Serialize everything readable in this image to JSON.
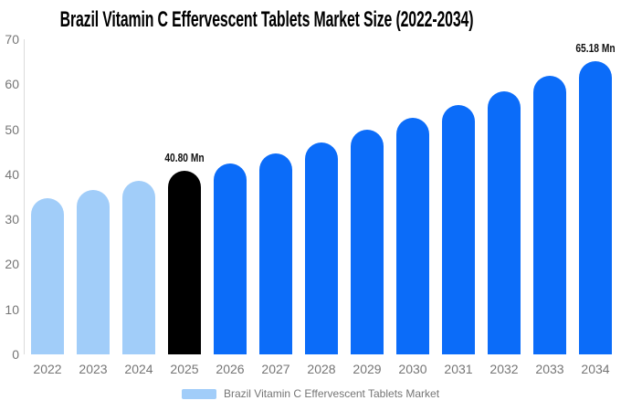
{
  "chart_data": {
    "type": "bar",
    "title": "Brazil Vitamin C Effervescent Tablets Market Size (2022-2034)",
    "xlabel": "",
    "ylabel": "",
    "unit": "Mn",
    "categories": [
      "2022",
      "2023",
      "2024",
      "2025",
      "2026",
      "2027",
      "2028",
      "2029",
      "2030",
      "2031",
      "2032",
      "2033",
      "2034"
    ],
    "values": [
      34.6,
      36.5,
      38.5,
      40.8,
      42.4,
      44.7,
      47.0,
      49.9,
      52.5,
      55.4,
      58.4,
      61.8,
      65.18
    ],
    "bar_colors": [
      "#a1cdf9",
      "#a1cdf9",
      "#a1cdf9",
      "#000000",
      "#0b6cf9",
      "#0b6cf9",
      "#0b6cf9",
      "#0b6cf9",
      "#0b6cf9",
      "#0b6cf9",
      "#0b6cf9",
      "#0b6cf9",
      "#0b6cf9"
    ],
    "palette": {
      "historical": "#a1cdf9",
      "base_year": "#000000",
      "forecast": "#0b6cf9"
    },
    "data_labels": [
      {
        "index": 3,
        "text": "40.80 Mn"
      },
      {
        "index": 12,
        "text": "65.18 Mn"
      }
    ],
    "ylim": [
      0,
      70
    ],
    "yticks": [
      0,
      10,
      20,
      30,
      40,
      50,
      60,
      70
    ],
    "grid": false,
    "axis_color": "#dbdbdb",
    "tick_label_color": "#757575",
    "legend": {
      "position": "bottom",
      "label": "Brazil Vitamin C Effervescent Tablets Market",
      "swatch_color": "#a1cdf9"
    }
  }
}
